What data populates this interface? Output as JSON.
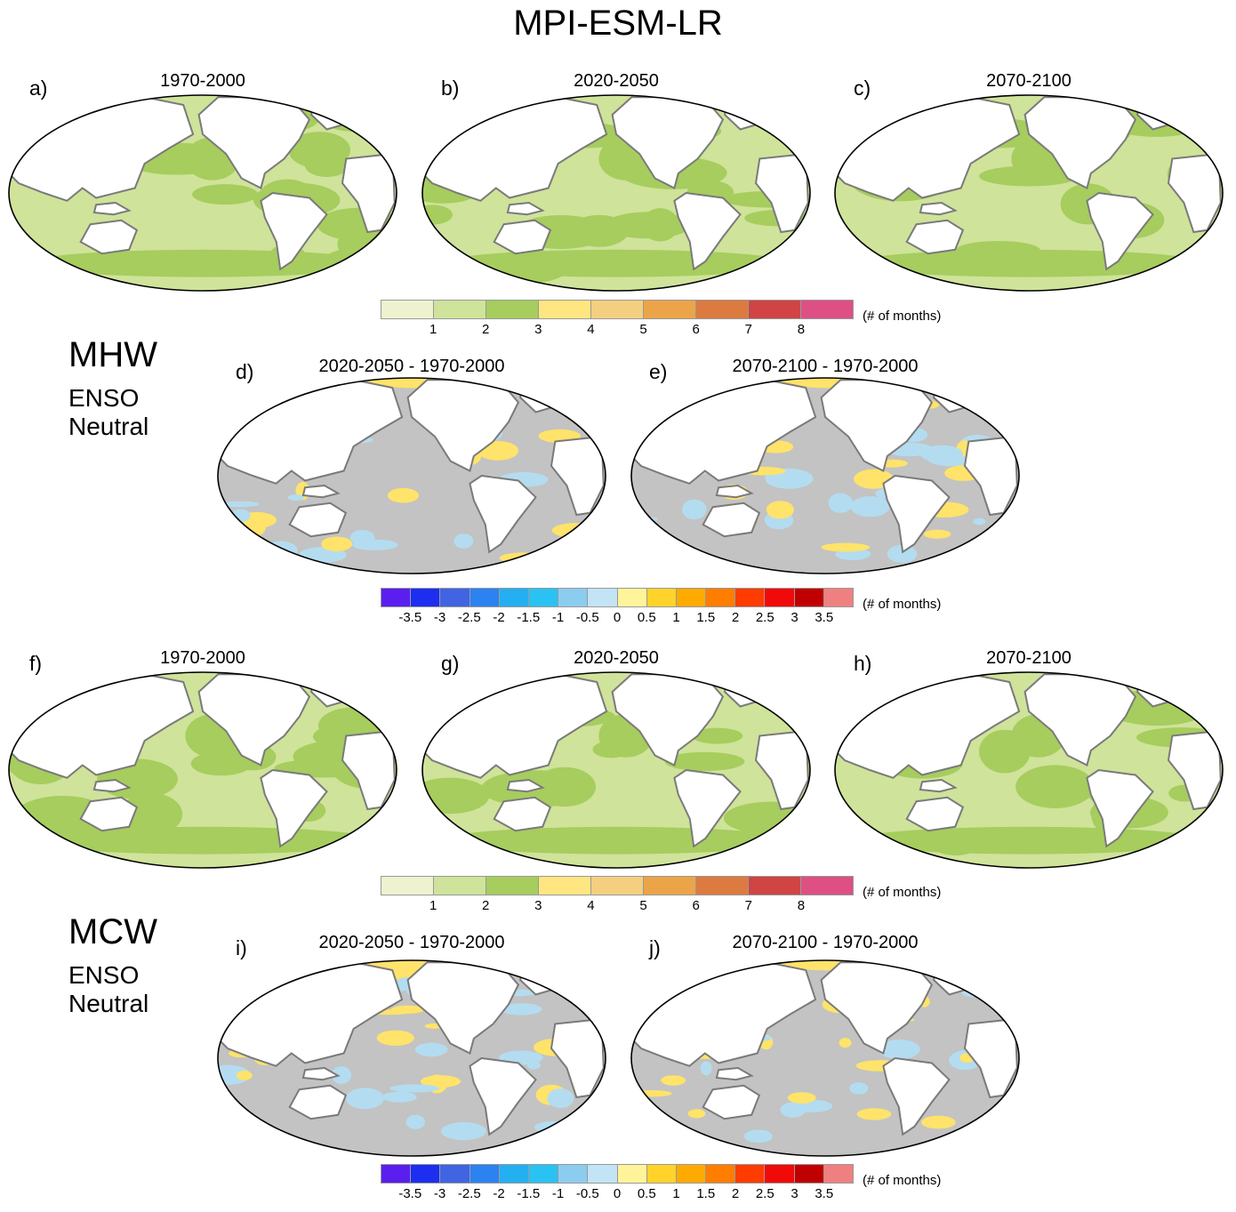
{
  "figure_title": "MPI-ESM-LR",
  "sections": [
    {
      "label": "MHW",
      "sublabel_line1": "ENSO",
      "sublabel_line2": "Neutral"
    },
    {
      "label": "MCW",
      "sublabel_line1": "ENSO",
      "sublabel_line2": "Neutral"
    }
  ],
  "panels": [
    {
      "letter": "a)",
      "title": "1970-2000",
      "kind": "climatology"
    },
    {
      "letter": "b)",
      "title": "2020-2050",
      "kind": "climatology"
    },
    {
      "letter": "c)",
      "title": "2070-2100",
      "kind": "climatology"
    },
    {
      "letter": "d)",
      "title": "2020-2050 - 1970-2000",
      "kind": "difference"
    },
    {
      "letter": "e)",
      "title": "2070-2100 - 1970-2000",
      "kind": "difference"
    },
    {
      "letter": "f)",
      "title": "1970-2000",
      "kind": "climatology"
    },
    {
      "letter": "g)",
      "title": "2020-2050",
      "kind": "climatology"
    },
    {
      "letter": "h)",
      "title": "2070-2100",
      "kind": "climatology"
    },
    {
      "letter": "i)",
      "title": "2020-2050 - 1970-2000",
      "kind": "difference"
    },
    {
      "letter": "j)",
      "title": "2070-2100 - 1970-2000",
      "kind": "difference"
    }
  ],
  "colorbar_count": {
    "unit": "(# of months)",
    "ticks": [
      "1",
      "2",
      "3",
      "4",
      "5",
      "6",
      "7",
      "8"
    ],
    "colors": [
      "#eef2cf",
      "#cfe39a",
      "#a6cd5e",
      "#ffe680",
      "#f5cf80",
      "#eca448",
      "#dc7a40",
      "#d04444",
      "#de4f84"
    ]
  },
  "colorbar_diff": {
    "unit": "(# of months)",
    "ticks": [
      "-3.5",
      "-3",
      "-2.5",
      "-2",
      "-1.5",
      "-1",
      "-0.5",
      "0",
      "0.5",
      "1",
      "1.5",
      "2",
      "2.5",
      "3",
      "3.5"
    ],
    "colors": [
      "#5a1eef",
      "#1d2ef0",
      "#4064e2",
      "#2c82f0",
      "#24aff0",
      "#29c2f2",
      "#8cccef",
      "#c2e4f5",
      "#fff49a",
      "#ffd32a",
      "#ffaa00",
      "#ff7e00",
      "#ff3c00",
      "#f00a0a",
      "#c00000",
      "#f08080"
    ]
  },
  "map_colors": {
    "land": "#ffffff",
    "coastline": "#7a7a7a",
    "ocean_climatology": "#cfe39a",
    "ocean_climatology_high": "#a6cd5e",
    "ocean_climatology_peak": "#ffe680",
    "ocean_difference": "#c3c3c3",
    "difference_negative": "#b4dcf0",
    "difference_positive": "#ffe36a"
  }
}
